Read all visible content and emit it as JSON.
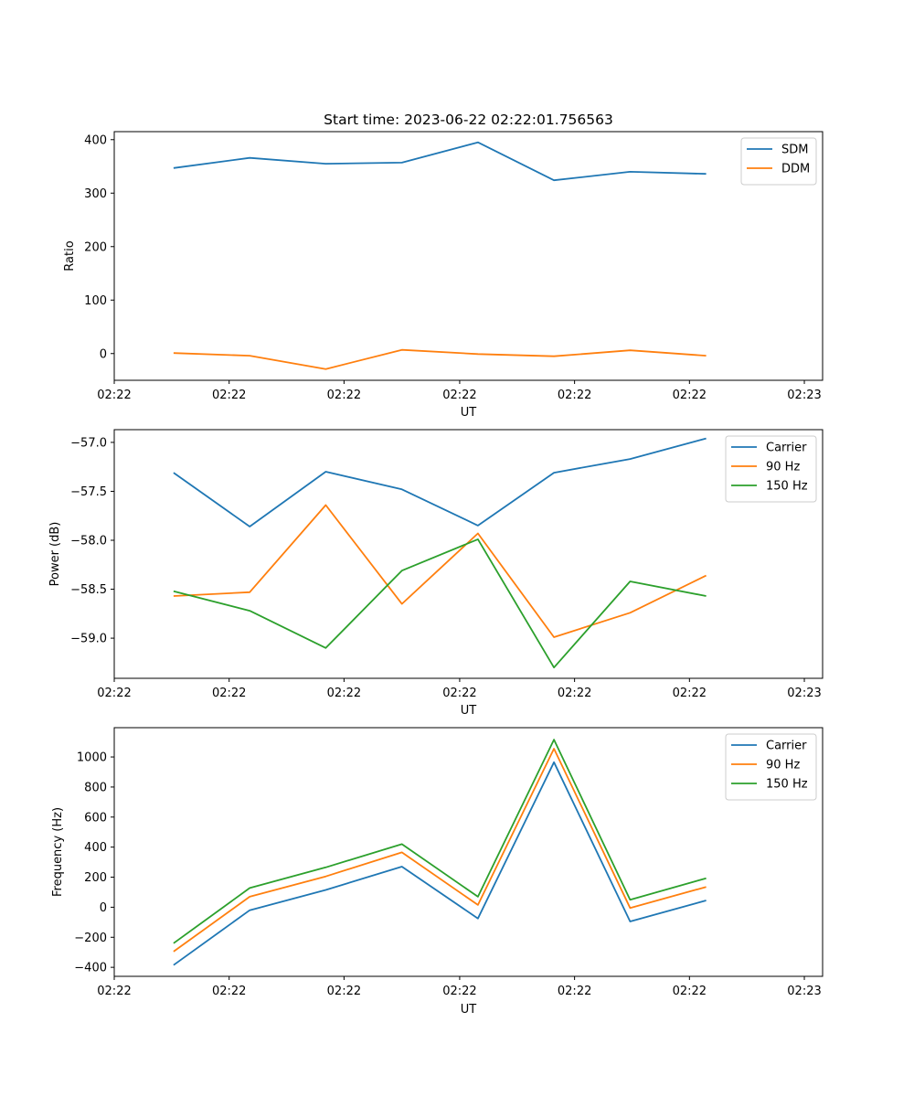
{
  "chart_data": [
    {
      "type": "line",
      "title": "Start time: 2023-06-22 02:22:01.756563",
      "xlabel": "UT",
      "ylabel": "Ratio",
      "x": [
        0,
        1,
        2,
        3,
        4,
        5,
        6,
        7
      ],
      "xlim": [
        -0.78,
        8.53
      ],
      "x_ticks": [
        {
          "value": -0.78,
          "label": "02:22"
        },
        {
          "value": 0.73,
          "label": "02:22"
        },
        {
          "value": 2.24,
          "label": "02:22"
        },
        {
          "value": 3.76,
          "label": "02:22"
        },
        {
          "value": 5.27,
          "label": "02:22"
        },
        {
          "value": 6.78,
          "label": "02:22"
        },
        {
          "value": 8.29,
          "label": "02:23"
        }
      ],
      "ylim": [
        -50,
        415
      ],
      "y_ticks": [
        0,
        100,
        200,
        300,
        400
      ],
      "y_tick_labels": [
        "0",
        "100",
        "200",
        "300",
        "400"
      ],
      "legend_position": "top-right",
      "series": [
        {
          "name": "SDM",
          "color": "#1f77b4",
          "values": [
            347,
            366,
            355,
            357,
            395,
            324,
            340,
            336
          ]
        },
        {
          "name": "DDM",
          "color": "#ff7f0e",
          "values": [
            1,
            -4,
            -29,
            7,
            -1,
            -5,
            6,
            -4
          ]
        }
      ]
    },
    {
      "type": "line",
      "xlabel": "UT",
      "ylabel": "Power (dB)",
      "x": [
        0,
        1,
        2,
        3,
        4,
        5,
        6,
        7
      ],
      "xlim": [
        -0.78,
        8.53
      ],
      "x_ticks": [
        {
          "value": -0.78,
          "label": "02:22"
        },
        {
          "value": 0.73,
          "label": "02:22"
        },
        {
          "value": 2.24,
          "label": "02:22"
        },
        {
          "value": 3.76,
          "label": "02:22"
        },
        {
          "value": 5.27,
          "label": "02:22"
        },
        {
          "value": 6.78,
          "label": "02:22"
        },
        {
          "value": 8.29,
          "label": "02:23"
        }
      ],
      "ylim": [
        -59.41,
        -56.87
      ],
      "y_ticks": [
        -59.0,
        -58.5,
        -58.0,
        -57.5,
        -57.0
      ],
      "y_tick_labels": [
        "−59.0",
        "−58.5",
        "−58.0",
        "−57.5",
        "−57.0"
      ],
      "legend_position": "top-right",
      "series": [
        {
          "name": "Carrier",
          "color": "#1f77b4",
          "values": [
            -57.31,
            -57.86,
            -57.3,
            -57.48,
            -57.85,
            -57.31,
            -57.17,
            -56.96
          ]
        },
        {
          "name": "90 Hz",
          "color": "#ff7f0e",
          "values": [
            -58.57,
            -58.53,
            -57.64,
            -58.65,
            -57.93,
            -58.99,
            -58.74,
            -58.36
          ]
        },
        {
          "name": "150 Hz",
          "color": "#2ca02c",
          "values": [
            -58.52,
            -58.72,
            -59.1,
            -58.31,
            -57.99,
            -59.3,
            -58.42,
            -58.57
          ]
        }
      ]
    },
    {
      "type": "line",
      "xlabel": "UT",
      "ylabel": "Frequency (Hz)",
      "x": [
        0,
        1,
        2,
        3,
        4,
        5,
        6,
        7
      ],
      "xlim": [
        -0.78,
        8.53
      ],
      "x_ticks": [
        {
          "value": -0.78,
          "label": "02:22"
        },
        {
          "value": 0.73,
          "label": "02:22"
        },
        {
          "value": 2.24,
          "label": "02:22"
        },
        {
          "value": 3.76,
          "label": "02:22"
        },
        {
          "value": 5.27,
          "label": "02:22"
        },
        {
          "value": 6.78,
          "label": "02:22"
        },
        {
          "value": 8.29,
          "label": "02:23"
        }
      ],
      "ylim": [
        -460,
        1195
      ],
      "y_ticks": [
        -400,
        -200,
        0,
        200,
        400,
        600,
        800,
        1000
      ],
      "y_tick_labels": [
        "−400",
        "−200",
        "0",
        "200",
        "400",
        "600",
        "800",
        "1000"
      ],
      "legend_position": "top-right",
      "series": [
        {
          "name": "Carrier",
          "color": "#1f77b4",
          "values": [
            -385,
            -20,
            115,
            270,
            -75,
            965,
            -95,
            45
          ]
        },
        {
          "name": "90 Hz",
          "color": "#ff7f0e",
          "values": [
            -295,
            70,
            205,
            365,
            15,
            1055,
            -5,
            135
          ]
        },
        {
          "name": "150 Hz",
          "color": "#2ca02c",
          "values": [
            -240,
            128,
            265,
            420,
            70,
            1115,
            50,
            193
          ]
        }
      ]
    }
  ]
}
